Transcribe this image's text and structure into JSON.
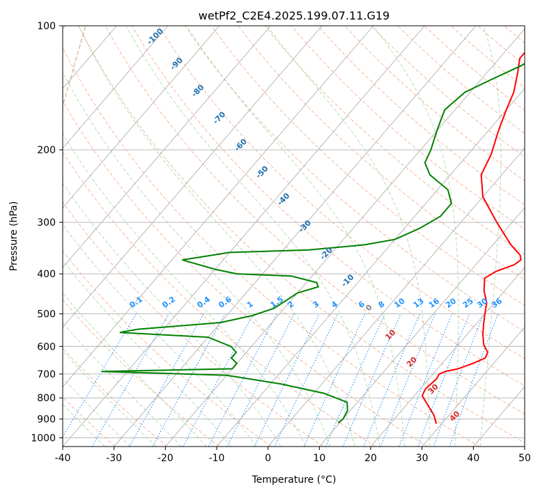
{
  "chart_data": {
    "type": "line",
    "subtype": "skew-T log-P diagram",
    "title": "wetPf2_C2E4.2025.199.07.11.G19",
    "xlabel": "Temperature (°C)",
    "ylabel": "Pressure (hPa)",
    "xlim": [
      -40,
      50
    ],
    "ylim": [
      1050,
      100
    ],
    "y_scale": "log",
    "grid": true,
    "x_ticks": [
      -40,
      -30,
      -20,
      -10,
      0,
      10,
      20,
      30,
      40,
      50
    ],
    "y_ticks": [
      100,
      200,
      300,
      400,
      500,
      600,
      700,
      800,
      900,
      1000
    ],
    "series": [
      {
        "color": "#ff0000",
        "points": [
          {
            "t": 29,
            "p": 925
          },
          {
            "t": 27,
            "p": 880
          },
          {
            "t": 24,
            "p": 830
          },
          {
            "t": 21.5,
            "p": 790
          },
          {
            "t": 21,
            "p": 760
          },
          {
            "t": 21.5,
            "p": 720
          },
          {
            "t": 21.2,
            "p": 700
          },
          {
            "t": 22,
            "p": 690
          },
          {
            "t": 24,
            "p": 680
          },
          {
            "t": 26,
            "p": 660
          },
          {
            "t": 27.5,
            "p": 640
          },
          {
            "t": 27,
            "p": 620
          },
          {
            "t": 25,
            "p": 595
          },
          {
            "t": 23,
            "p": 560
          },
          {
            "t": 21.5,
            "p": 530
          },
          {
            "t": 20,
            "p": 500
          },
          {
            "t": 18.5,
            "p": 470
          },
          {
            "t": 16,
            "p": 440
          },
          {
            "t": 14,
            "p": 410
          },
          {
            "t": 15,
            "p": 395
          },
          {
            "t": 17.5,
            "p": 380
          },
          {
            "t": 18,
            "p": 370
          },
          {
            "t": 17,
            "p": 360
          },
          {
            "t": 13.5,
            "p": 340
          },
          {
            "t": 7,
            "p": 300
          },
          {
            "t": 0,
            "p": 260
          },
          {
            "t": -4,
            "p": 230
          },
          {
            "t": -5.5,
            "p": 205
          },
          {
            "t": -8,
            "p": 180
          },
          {
            "t": -10,
            "p": 160
          },
          {
            "t": -11.5,
            "p": 145
          },
          {
            "t": -14,
            "p": 130
          },
          {
            "t": -16,
            "p": 120
          },
          {
            "t": -16,
            "p": 112
          },
          {
            "t": -15,
            "p": 105
          },
          {
            "t": -14,
            "p": 100
          }
        ]
      },
      {
        "color": "#008000",
        "points": [
          {
            "t": 9.7,
            "p": 920
          },
          {
            "t": 10,
            "p": 900
          },
          {
            "t": 9.5,
            "p": 860
          },
          {
            "t": 8,
            "p": 820
          },
          {
            "t": 2,
            "p": 780
          },
          {
            "t": -8,
            "p": 740
          },
          {
            "t": -20,
            "p": 705
          },
          {
            "t": -45,
            "p": 690
          },
          {
            "t": -20,
            "p": 680
          },
          {
            "t": -20,
            "p": 660
          },
          {
            "t": -22,
            "p": 640
          },
          {
            "t": -22,
            "p": 620
          },
          {
            "t": -24,
            "p": 600
          },
          {
            "t": -30,
            "p": 570
          },
          {
            "t": -48,
            "p": 555
          },
          {
            "t": -45,
            "p": 545
          },
          {
            "t": -30,
            "p": 525
          },
          {
            "t": -25,
            "p": 505
          },
          {
            "t": -22,
            "p": 485
          },
          {
            "t": -21,
            "p": 465
          },
          {
            "t": -20,
            "p": 445
          },
          {
            "t": -17,
            "p": 430
          },
          {
            "t": -18,
            "p": 420
          },
          {
            "t": -24,
            "p": 405
          },
          {
            "t": -35,
            "p": 400
          },
          {
            "t": -40,
            "p": 390
          },
          {
            "t": -48,
            "p": 370
          },
          {
            "t": -40,
            "p": 355
          },
          {
            "t": -25,
            "p": 350
          },
          {
            "t": -15,
            "p": 340
          },
          {
            "t": -10,
            "p": 330
          },
          {
            "t": -7,
            "p": 310
          },
          {
            "t": -5,
            "p": 290
          },
          {
            "t": -5,
            "p": 270
          },
          {
            "t": -8,
            "p": 250
          },
          {
            "t": -14,
            "p": 230
          },
          {
            "t": -17,
            "p": 215
          },
          {
            "t": -18,
            "p": 200
          },
          {
            "t": -20,
            "p": 180
          },
          {
            "t": -22,
            "p": 160
          },
          {
            "t": -21,
            "p": 145
          },
          {
            "t": -18,
            "p": 135
          },
          {
            "t": -14.5,
            "p": 125
          },
          {
            "t": -12,
            "p": 115
          },
          {
            "t": -10,
            "p": 105
          },
          {
            "t": -9,
            "p": 100
          }
        ]
      }
    ],
    "dry_adiabat_labels": [
      "-100",
      "-90",
      "-80",
      "-70",
      "-60",
      "-50",
      "-40",
      "-30",
      "-20",
      "-10",
      "0",
      "10",
      "20",
      "30",
      "40"
    ],
    "mixing_ratio_labels": [
      "0.1",
      "0.2",
      "0.4",
      "0.6",
      "1",
      "1.5",
      "2",
      "3",
      "4",
      "6",
      "8",
      "10",
      "13",
      "16",
      "20",
      "25",
      "30",
      "36"
    ]
  }
}
